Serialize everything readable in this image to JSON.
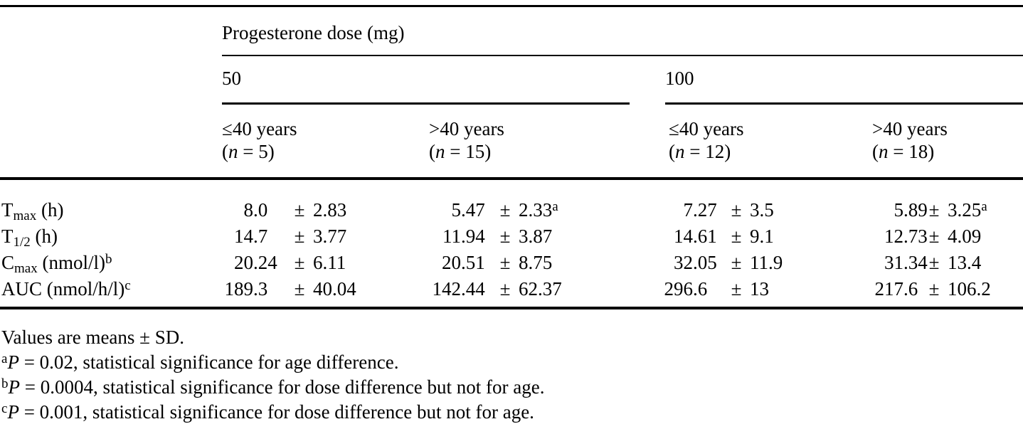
{
  "table": {
    "title": "Progesterone dose (mg)",
    "doses": [
      {
        "label": "50"
      },
      {
        "label": "100"
      }
    ],
    "age_groups": [
      {
        "age": "≤40 years",
        "open": "(",
        "var": "n",
        "rest": " = 5)"
      },
      {
        "age": ">40 years",
        "open": "(",
        "var": "n",
        "rest": " = 15)"
      },
      {
        "age": "≤40 years",
        "open": "(",
        "var": "n",
        "rest": " = 12)"
      },
      {
        "age": ">40 years",
        "open": "(",
        "var": "n",
        "rest": " = 18)"
      }
    ],
    "pm": "±",
    "rows": [
      {
        "label": {
          "base": "T",
          "sub": "max",
          "rest": " (h)",
          "sup": ""
        },
        "cells": [
          {
            "int": "8",
            "frac": ".0",
            "sd": "2.83",
            "sup": ""
          },
          {
            "int": "5",
            "frac": ".47",
            "sd": "2.33",
            "sup": "a"
          },
          {
            "int": "7",
            "frac": ".27",
            "sd": "3.5",
            "sup": ""
          },
          {
            "int": "5",
            "frac": ".89",
            "sd": "3.25",
            "sup": "a"
          }
        ]
      },
      {
        "label": {
          "base": "T",
          "sub": "1/2",
          "rest": " (h)",
          "sup": ""
        },
        "cells": [
          {
            "int": "14",
            "frac": ".7",
            "sd": "3.77",
            "sup": ""
          },
          {
            "int": "11",
            "frac": ".94",
            "sd": "3.87",
            "sup": ""
          },
          {
            "int": "14",
            "frac": ".61",
            "sd": "9.1",
            "sup": ""
          },
          {
            "int": "12",
            "frac": ".73",
            "sd": "4.09",
            "sup": ""
          }
        ]
      },
      {
        "label": {
          "base": "C",
          "sub": "max",
          "rest": " (nmol/l)",
          "sup": "b"
        },
        "cells": [
          {
            "int": "20",
            "frac": ".24",
            "sd": "6.11",
            "sup": ""
          },
          {
            "int": "20",
            "frac": ".51",
            "sd": "8.75",
            "sup": ""
          },
          {
            "int": "32",
            "frac": ".05",
            "sd": "11.9",
            "sup": ""
          },
          {
            "int": "31",
            "frac": ".34",
            "sd": "13.4",
            "sup": ""
          }
        ]
      },
      {
        "label": {
          "base": "AUC",
          "sub": "",
          "rest": " (nmol/h/l)",
          "sup": "c"
        },
        "cells": [
          {
            "int": "189",
            "frac": ".3",
            "sd": "40.04",
            "sup": ""
          },
          {
            "int": "142",
            "frac": ".44",
            "sd": "62.37",
            "sup": ""
          },
          {
            "int": "296",
            "frac": ".6",
            "sd": "13",
            "sup": ""
          },
          {
            "int": "217",
            "frac": ".6",
            "sd": "106.2",
            "sup": ""
          }
        ]
      }
    ]
  },
  "footnotes": [
    {
      "sup": "",
      "var": "",
      "text": "Values are means ± SD."
    },
    {
      "sup": "a",
      "var": "P",
      "text": " = 0.02, statistical significance for age difference."
    },
    {
      "sup": "b",
      "var": "P",
      "text": " = 0.0004, statistical significance for dose difference but not for age."
    },
    {
      "sup": "c",
      "var": "P",
      "text": " = 0.001, statistical significance for dose difference but not for age."
    }
  ]
}
